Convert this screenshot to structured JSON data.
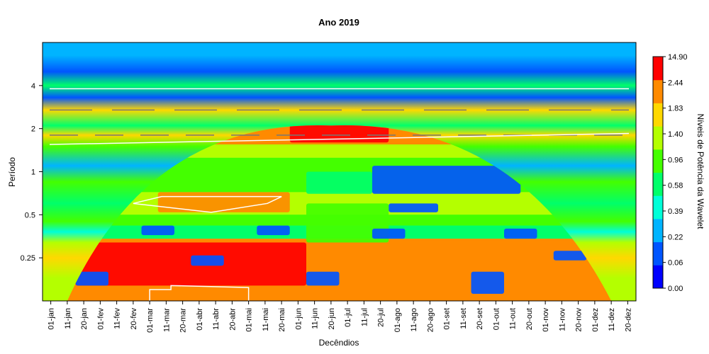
{
  "chart_data": {
    "type": "heatmap",
    "title": "Ano 2019",
    "xlabel": "Decêndios",
    "ylabel": "Período",
    "x_ticks": [
      "01-jan",
      "11-jan",
      "20-jan",
      "01-fev",
      "11-fev",
      "20-fev",
      "01-mar",
      "11-mar",
      "20-mar",
      "01-abr",
      "11-abr",
      "20-abr",
      "01-mai",
      "11-mai",
      "20-mai",
      "01-jun",
      "11-jun",
      "20-jun",
      "01-jul",
      "11-jul",
      "20-jul",
      "01-ago",
      "11-ago",
      "20-ago",
      "01-set",
      "11-set",
      "20-set",
      "01-out",
      "11-out",
      "20-out",
      "01-nov",
      "11-nov",
      "20-nov",
      "01-dez",
      "11-dez",
      "20-dez"
    ],
    "y_scale": "log2",
    "y_ticks": [
      0.25,
      0.5,
      1,
      2,
      4
    ],
    "y_tick_labels": [
      "0.25",
      "0.5",
      "1",
      "2",
      "4"
    ],
    "ylim": [
      0.125,
      8
    ],
    "colorbar": {
      "label": "Níveis de Potência da Wavelet",
      "levels": [
        "0.00",
        "0.06",
        "0.22",
        "0.39",
        "0.58",
        "0.96",
        "1.40",
        "1.83",
        "2.44",
        "14.90"
      ],
      "colors": [
        "#0000ff",
        "#0055ff",
        "#00b4ff",
        "#00ffd8",
        "#00ff6a",
        "#44ff00",
        "#b4ff00",
        "#ffd800",
        "#ff8a00",
        "#ff0000"
      ]
    },
    "power_bands": [
      {
        "period": 6.5,
        "level": 0.22
      },
      {
        "period": 5.0,
        "level": 0.06
      },
      {
        "period": 4.0,
        "level": 0.58
      },
      {
        "period": 3.3,
        "level": 0.06
      },
      {
        "period": 2.7,
        "level": 1.83
      },
      {
        "period": 2.1,
        "level": 0.58
      },
      {
        "period": 1.8,
        "level": 1.83
      },
      {
        "period": 1.5,
        "level": 0.96
      },
      {
        "period": 1.1,
        "level": 0.22
      },
      {
        "period": 0.85,
        "level": 0.96
      },
      {
        "period": 0.6,
        "level": 0.58
      },
      {
        "period": 0.45,
        "level": 0.96
      },
      {
        "period": 0.38,
        "level": 0.39
      },
      {
        "period": 0.32,
        "level": 1.4
      },
      {
        "period": 0.25,
        "level": 1.83
      },
      {
        "period": 0.18,
        "level": 1.4
      }
    ],
    "cone_of_influence": {
      "peak_x": "20-jun",
      "peak_period": 2.1,
      "edge_period_start": 0.125,
      "edge_period_end": 0.125
    },
    "hotspots": [
      {
        "x_from": "20-jan",
        "x_to": "01-jun",
        "period_from": 0.16,
        "period_to": 0.32,
        "level": 14.9
      },
      {
        "x_from": "11-mar",
        "x_to": "20-mai",
        "period_from": 0.52,
        "period_to": 0.72,
        "level": 2.44
      },
      {
        "x_from": "11-mar",
        "x_to": "11-mai",
        "period_from": 1.6,
        "period_to": 2.3,
        "level": 2.44
      },
      {
        "x_from": "01-jun",
        "x_to": "20-jul",
        "period_from": 1.6,
        "period_to": 2.2,
        "level": 14.9
      },
      {
        "x_from": "11-jun",
        "x_to": "20-jul",
        "period_from": 0.32,
        "period_to": 0.6,
        "level": 0.96
      },
      {
        "x_from": "11-jun",
        "x_to": "11-jul",
        "period_from": 0.7,
        "period_to": 1.0,
        "level": 0.58
      },
      {
        "x_from": "20-jul",
        "x_to": "11-out",
        "period_from": 0.7,
        "period_to": 1.1,
        "level": 0.06
      },
      {
        "x_from": "01-ago",
        "x_to": "20-ago",
        "period_from": 0.52,
        "period_to": 0.6,
        "level": 0.06
      },
      {
        "x_from": "20-jul",
        "x_to": "01-ago",
        "period_from": 0.34,
        "period_to": 0.4,
        "level": 0.06
      },
      {
        "x_from": "11-out",
        "x_to": "20-out",
        "period_from": 0.34,
        "period_to": 0.4,
        "level": 0.06
      },
      {
        "x_from": "01-mar",
        "x_to": "11-mar",
        "period_from": 0.36,
        "period_to": 0.42,
        "level": 0.06
      },
      {
        "x_from": "11-mai",
        "x_to": "20-mai",
        "period_from": 0.36,
        "period_to": 0.42,
        "level": 0.06
      },
      {
        "x_from": "11-nov",
        "x_to": "20-nov",
        "period_from": 0.24,
        "period_to": 0.28,
        "level": 0.06
      },
      {
        "x_from": "01-abr",
        "x_to": "11-abr",
        "period_from": 0.22,
        "period_to": 0.26,
        "level": 0.06
      },
      {
        "x_from": "20-set",
        "x_to": "01-out",
        "period_from": 0.14,
        "period_to": 0.2,
        "level": 0.06
      },
      {
        "x_from": "20-jan",
        "x_to": "01-fev",
        "period_from": 0.16,
        "period_to": 0.2,
        "level": 0.06
      },
      {
        "x_from": "11-jun",
        "x_to": "20-jun",
        "period_from": 0.16,
        "period_to": 0.2,
        "level": 0.06
      }
    ]
  }
}
